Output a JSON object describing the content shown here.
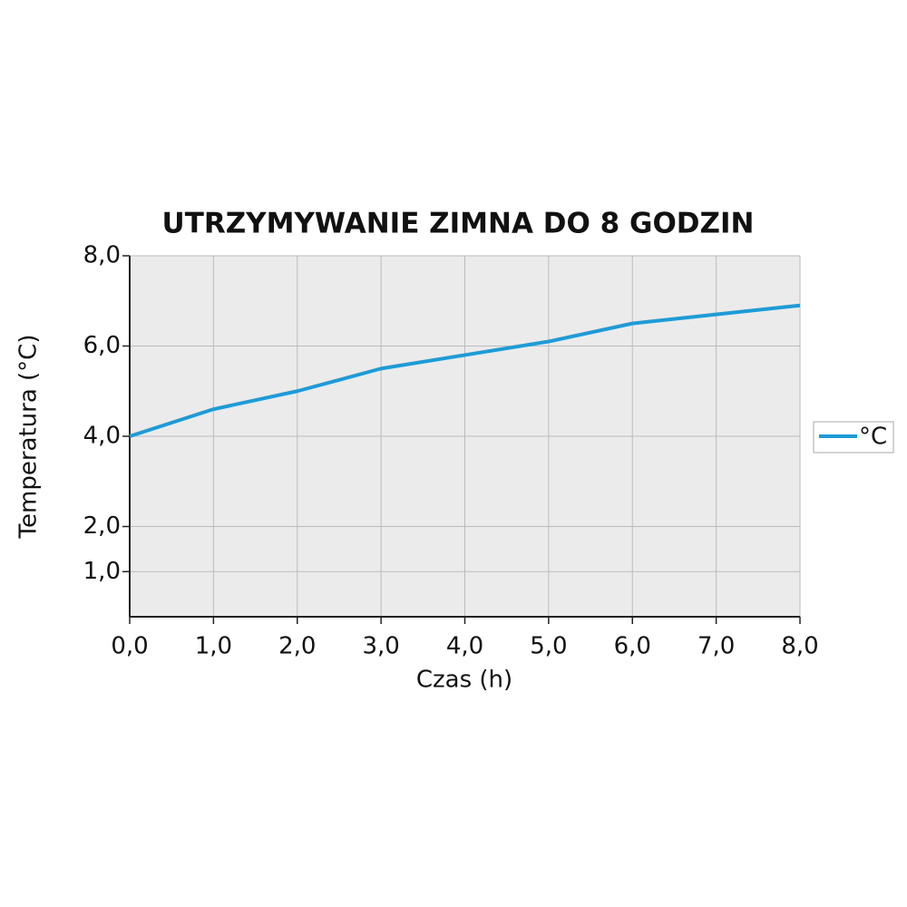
{
  "chart_data": {
    "type": "line",
    "title": "UTRZYMYWANIE ZIMNA DO 8 GODZIN",
    "x_label": "Czas (h)",
    "y_label": "Temperatura (°C)",
    "x": [
      0,
      1,
      2,
      3,
      4,
      5,
      6,
      7,
      8
    ],
    "series": [
      {
        "name": "°C",
        "color": "#1e9bd7",
        "values": [
          4.0,
          4.6,
          5.0,
          5.5,
          5.8,
          6.1,
          6.5,
          6.7,
          6.9
        ]
      }
    ],
    "xlim": [
      0,
      8
    ],
    "xticks": [
      {
        "value": 0,
        "label": "0,0"
      },
      {
        "value": 1,
        "label": "1,0"
      },
      {
        "value": 2,
        "label": "2,0"
      },
      {
        "value": 3,
        "label": "3,0"
      },
      {
        "value": 4,
        "label": "4,0"
      },
      {
        "value": 5,
        "label": "5,0"
      },
      {
        "value": 6,
        "label": "6,0"
      },
      {
        "value": 7,
        "label": "7,0"
      },
      {
        "value": 8,
        "label": "8,0"
      }
    ],
    "ylim": [
      0,
      8
    ],
    "yticks": [
      {
        "value": 1,
        "label": "1,0"
      },
      {
        "value": 2,
        "label": "2,0"
      },
      {
        "value": 4,
        "label": "4,0"
      },
      {
        "value": 6,
        "label": "6,0"
      },
      {
        "value": 8,
        "label": "8,0"
      }
    ],
    "grid": true,
    "legend": "right"
  }
}
